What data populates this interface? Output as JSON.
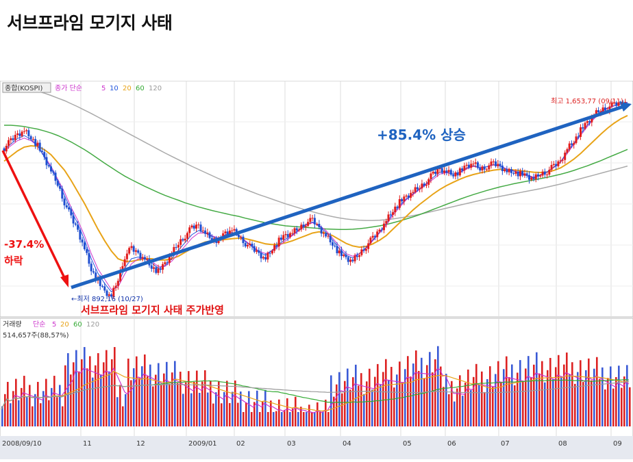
{
  "title": "서브프라임 모기지 사태",
  "chart_data": {
    "type": "candlestick",
    "price_legend": {
      "index_label": "종합(KOSPI)",
      "ma_label": "종가 단순",
      "periods": [
        "5",
        "10",
        "20",
        "60",
        "120"
      ],
      "period_colors": [
        "#cc33cc",
        "#2255dd",
        "#e8a317",
        "#33aa33",
        "#999999"
      ]
    },
    "volume_legend": {
      "label": "거래량",
      "ma_label": "단순",
      "periods": [
        "5",
        "20",
        "60",
        "120"
      ],
      "period_colors": [
        "#cc33cc",
        "#e8a317",
        "#33aa33",
        "#999999"
      ],
      "current_volume": "514,657주(88,57%)"
    },
    "x_tick_labels": [
      "2008/09/10",
      "11",
      "12",
      "2009/01",
      "02",
      "03",
      "04",
      "05",
      "06",
      "07",
      "08",
      "09"
    ],
    "annotations": {
      "drop_pct": "-37.4%",
      "drop_word": "하락",
      "rise": "+85.4% 상승",
      "low_label": "←최저 892,16 (10/27)",
      "high_label": "최고 1,653,77 (09/11)",
      "event_caption": "서브프라임 모기지 사태 주가반영"
    },
    "key_points": {
      "start_value": 1480,
      "low": {
        "date": "2008-10-27",
        "value": 892.16
      },
      "high": {
        "date": "2009-09-11",
        "value": 1653.77
      },
      "drop_percent": -37.4,
      "rise_percent": 85.4
    },
    "price_series": [
      1470,
      1500,
      1525,
      1540,
      1515,
      1480,
      1430,
      1380,
      1330,
      1260,
      1200,
      1150,
      1080,
      1000,
      950,
      910,
      892,
      960,
      1050,
      1080,
      1060,
      1040,
      1010,
      990,
      1020,
      1060,
      1100,
      1130,
      1160,
      1170,
      1140,
      1120,
      1110,
      1140,
      1150,
      1130,
      1100,
      1080,
      1060,
      1040,
      1080,
      1110,
      1130,
      1140,
      1160,
      1180,
      1190,
      1160,
      1130,
      1100,
      1060,
      1040,
      1030,
      1060,
      1090,
      1120,
      1150,
      1190,
      1230,
      1260,
      1280,
      1300,
      1320,
      1340,
      1370,
      1390,
      1380,
      1370,
      1380,
      1400,
      1410,
      1390,
      1400,
      1410,
      1400,
      1380,
      1380,
      1370,
      1360,
      1350,
      1370,
      1380,
      1400,
      1420,
      1470,
      1500,
      1540,
      1570,
      1600,
      1620,
      1630,
      1640,
      1645,
      1654
    ],
    "ma5": [
      1460,
      1480,
      1500,
      1510,
      1500,
      1480,
      1440,
      1400,
      1350,
      1300,
      1240,
      1190,
      1130,
      1060,
      1000,
      960,
      920,
      930,
      980,
      1020,
      1040,
      1040,
      1030,
      1010,
      1010,
      1030,
      1060,
      1090,
      1120,
      1140,
      1140,
      1130,
      1120,
      1130,
      1140,
      1130,
      1110,
      1090,
      1070,
      1060,
      1070,
      1090,
      1110,
      1130,
      1150,
      1170,
      1180,
      1170,
      1150,
      1120,
      1090,
      1060,
      1050,
      1060,
      1080,
      1110,
      1140,
      1170,
      1210,
      1240,
      1270,
      1290,
      1310,
      1330,
      1350,
      1370,
      1375,
      1370,
      1375,
      1390,
      1400,
      1395,
      1398,
      1405,
      1402,
      1390,
      1383,
      1375,
      1365,
      1358,
      1365,
      1378,
      1395,
      1415,
      1450,
      1485,
      1520,
      1555,
      1585,
      1610,
      1625,
      1635,
      1642,
      1648
    ],
    "ma20": [
      1420,
      1440,
      1460,
      1475,
      1480,
      1478,
      1465,
      1445,
      1415,
      1385,
      1345,
      1300,
      1255,
      1205,
      1155,
      1110,
      1070,
      1040,
      1030,
      1030,
      1035,
      1040,
      1040,
      1035,
      1035,
      1040,
      1050,
      1065,
      1080,
      1095,
      1105,
      1110,
      1112,
      1115,
      1118,
      1120,
      1118,
      1112,
      1105,
      1098,
      1095,
      1097,
      1102,
      1110,
      1120,
      1130,
      1140,
      1145,
      1140,
      1130,
      1115,
      1100,
      1090,
      1085,
      1088,
      1098,
      1112,
      1130,
      1155,
      1180,
      1205,
      1230,
      1252,
      1272,
      1292,
      1310,
      1325,
      1338,
      1350,
      1360,
      1368,
      1374,
      1380,
      1385,
      1388,
      1388,
      1386,
      1383,
      1380,
      1377,
      1376,
      1378,
      1384,
      1394,
      1410,
      1428,
      1450,
      1475,
      1500,
      1525,
      1548,
      1568,
      1585,
      1598
    ],
    "ma60": [
      1560,
      1560,
      1558,
      1555,
      1550,
      1545,
      1538,
      1530,
      1520,
      1508,
      1495,
      1480,
      1465,
      1448,
      1430,
      1412,
      1395,
      1378,
      1362,
      1348,
      1335,
      1322,
      1310,
      1298,
      1287,
      1277,
      1268,
      1258,
      1250,
      1242,
      1235,
      1228,
      1222,
      1216,
      1210,
      1205,
      1198,
      1192,
      1186,
      1180,
      1176,
      1172,
      1168,
      1166,
      1164,
      1162,
      1160,
      1158,
      1156,
      1155,
      1154,
      1154,
      1155,
      1157,
      1160,
      1164,
      1168,
      1173,
      1180,
      1187,
      1195,
      1203,
      1212,
      1222,
      1232,
      1242,
      1252,
      1262,
      1272,
      1281,
      1290,
      1298,
      1306,
      1313,
      1320,
      1326,
      1332,
      1337,
      1342,
      1347,
      1352,
      1357,
      1363,
      1369,
      1376,
      1384,
      1393,
      1402,
      1412,
      1422,
      1433,
      1444,
      1455,
      1466
    ],
    "ma120": [
      1720,
      1716,
      1712,
      1706,
      1700,
      1693,
      1685,
      1676,
      1666,
      1656,
      1644,
      1632,
      1619,
      1606,
      1592,
      1578,
      1564,
      1550,
      1536,
      1522,
      1508,
      1494,
      1480,
      1466,
      1452,
      1439,
      1426,
      1413,
      1400,
      1388,
      1376,
      1364,
      1352,
      1341,
      1330,
      1320,
      1310,
      1300,
      1290,
      1281,
      1272,
      1263,
      1254,
      1246,
      1238,
      1230,
      1223,
      1216,
      1210,
      1204,
      1199,
      1195,
      1192,
      1190,
      1189,
      1189,
      1190,
      1192,
      1195,
      1199,
      1203,
      1208,
      1213,
      1219,
      1225,
      1231,
      1237,
      1243,
      1249,
      1255,
      1261,
      1267,
      1273,
      1278,
      1283,
      1288,
      1293,
      1298,
      1303,
      1308,
      1313,
      1319,
      1325,
      1331,
      1338,
      1345,
      1352,
      1359,
      1366,
      1373,
      1380,
      1387,
      1394,
      1401
    ]
  }
}
